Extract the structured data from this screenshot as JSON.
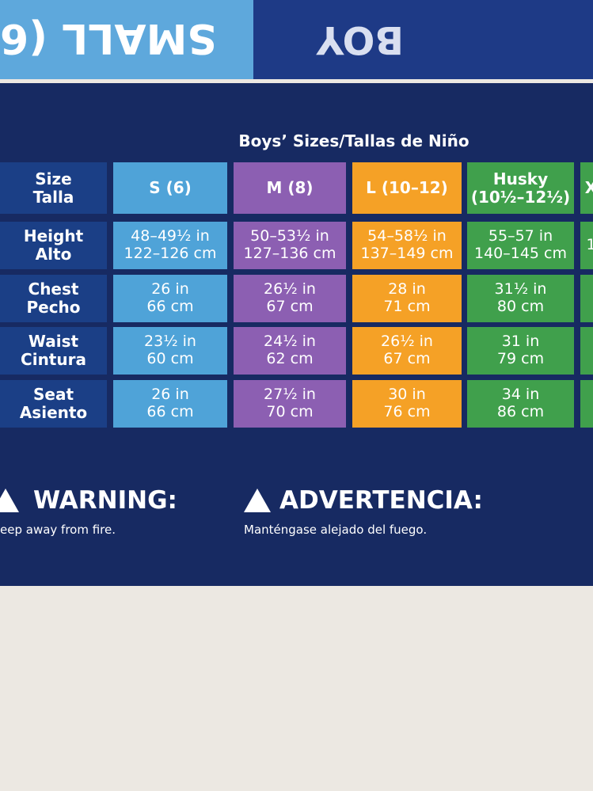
{
  "box_top": {
    "left_text": "SMALL (6",
    "right_text": "BOY"
  },
  "table": {
    "title": "Boys’ Sizes/Tallas de Niño",
    "header": [
      [
        "Size",
        "Talla"
      ],
      [
        "S (6)"
      ],
      [
        "M (8)"
      ],
      [
        "L (10–12)"
      ],
      [
        "Husky",
        "(10½–12½)"
      ],
      [
        "X"
      ]
    ],
    "rows": [
      [
        [
          "Height",
          "Alto"
        ],
        [
          "48–49½ in",
          "122–126 cm"
        ],
        [
          "50–53½ in",
          "127–136 cm"
        ],
        [
          "54–58½ in",
          "137–149 cm"
        ],
        [
          "55–57 in",
          "140–145 cm"
        ],
        [
          "1"
        ]
      ],
      [
        [
          "Chest",
          "Pecho"
        ],
        [
          "26 in",
          "66 cm"
        ],
        [
          "26½ in",
          "67 cm"
        ],
        [
          "28 in",
          "71 cm"
        ],
        [
          "31½ in",
          "80 cm"
        ],
        []
      ],
      [
        [
          "Waist",
          "Cintura"
        ],
        [
          "23½ in",
          "60 cm"
        ],
        [
          "24½ in",
          "62 cm"
        ],
        [
          "26½ in",
          "67 cm"
        ],
        [
          "31 in",
          "79 cm"
        ],
        []
      ],
      [
        [
          "Seat",
          "Asiento"
        ],
        [
          "26 in",
          "66 cm"
        ],
        [
          "27½ in",
          "70 cm"
        ],
        [
          "30 in",
          "76 cm"
        ],
        [
          "34 in",
          "86 cm"
        ],
        []
      ]
    ]
  },
  "warnings": [
    {
      "title": "WARNING:",
      "text": "eep away from fire."
    },
    {
      "title": "ADVERTENCIA:",
      "text": "Manténgase alejado del fuego."
    }
  ]
}
